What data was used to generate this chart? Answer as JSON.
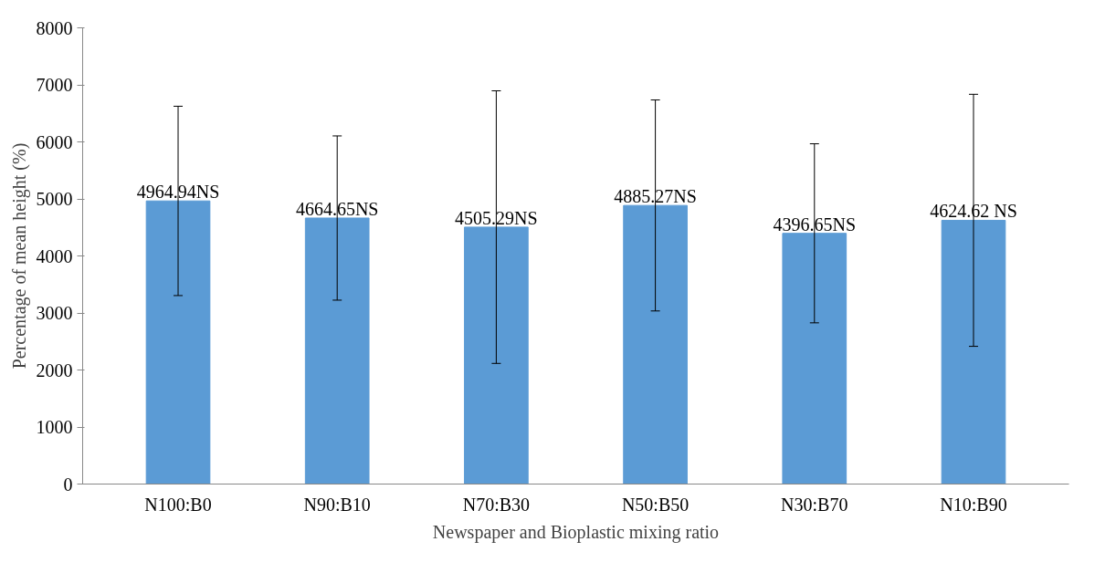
{
  "chart_data": {
    "type": "bar",
    "xlabel": "Newspaper and Bioplastic mixing ratio",
    "ylabel": "Percentage of mean height (%)",
    "categories": [
      "N100:B0",
      "N90:B10",
      "N70:B30",
      "N50:B50",
      "N30:B70",
      "N10:B90"
    ],
    "values": [
      4964.94,
      4664.65,
      4505.29,
      4885.27,
      4396.65,
      4624.62
    ],
    "errors": [
      1660,
      1440,
      2390,
      1850,
      1570,
      2210
    ],
    "value_labels": [
      "4964.94NS",
      "4664.65NS",
      "4505.29NS",
      "4885.27NS",
      "4396.65NS",
      "4624.62 NS"
    ],
    "color": "#5b9bd5",
    "ylim": [
      0,
      8000
    ],
    "yticks": [
      0,
      1000,
      2000,
      3000,
      4000,
      5000,
      6000,
      7000,
      8000
    ],
    "grid": false
  }
}
